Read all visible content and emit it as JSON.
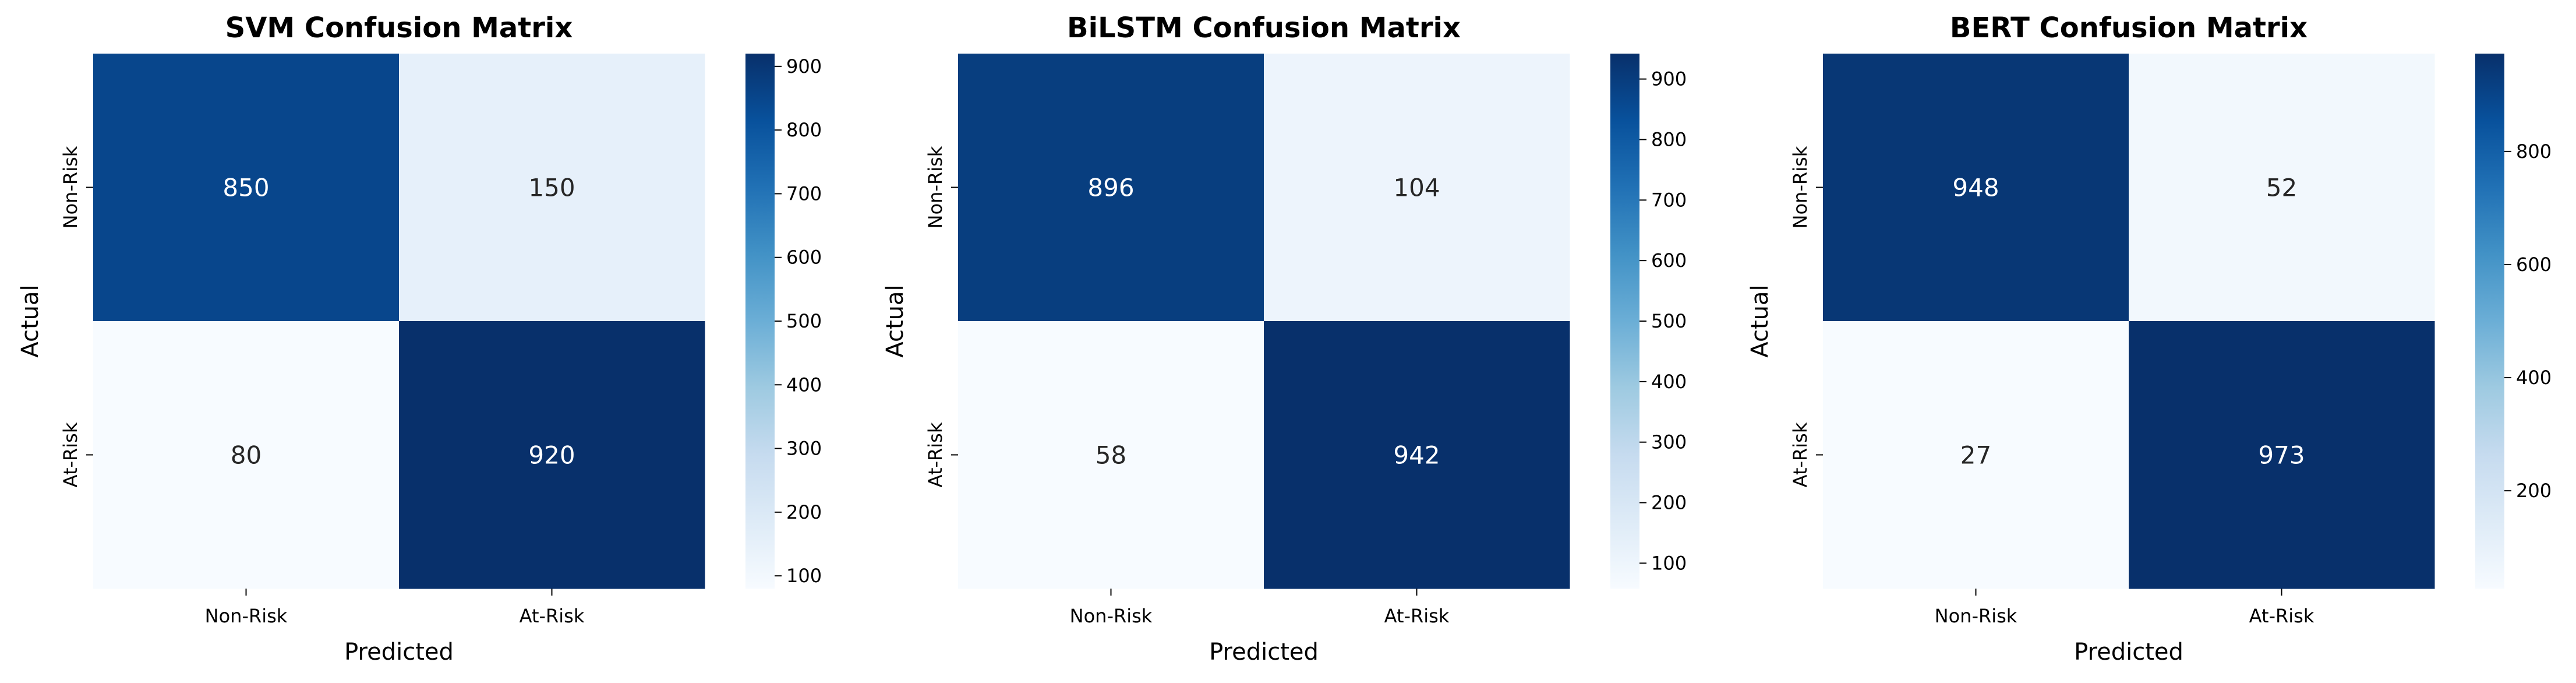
{
  "chart_data": [
    {
      "type": "heatmap",
      "title": "SVM Confusion Matrix",
      "xlabel": "Predicted",
      "ylabel": "Actual",
      "x_categories": [
        "Non-Risk",
        "At-Risk"
      ],
      "y_categories": [
        "Non-Risk",
        "At-Risk"
      ],
      "values": [
        [
          850,
          150
        ],
        [
          80,
          920
        ]
      ],
      "colormap": "Blues",
      "colorbar_range": [
        80,
        920
      ],
      "colorbar_ticks": [
        100,
        200,
        300,
        400,
        500,
        600,
        700,
        800,
        900
      ]
    },
    {
      "type": "heatmap",
      "title": "BiLSTM Confusion Matrix",
      "xlabel": "Predicted",
      "ylabel": "Actual",
      "x_categories": [
        "Non-Risk",
        "At-Risk"
      ],
      "y_categories": [
        "Non-Risk",
        "At-Risk"
      ],
      "values": [
        [
          896,
          104
        ],
        [
          58,
          942
        ]
      ],
      "colormap": "Blues",
      "colorbar_range": [
        58,
        942
      ],
      "colorbar_ticks": [
        100,
        200,
        300,
        400,
        500,
        600,
        700,
        800,
        900
      ]
    },
    {
      "type": "heatmap",
      "title": "BERT Confusion Matrix",
      "xlabel": "Predicted",
      "ylabel": "Actual",
      "x_categories": [
        "Non-Risk",
        "At-Risk"
      ],
      "y_categories": [
        "Non-Risk",
        "At-Risk"
      ],
      "values": [
        [
          948,
          52
        ],
        [
          27,
          973
        ]
      ],
      "colormap": "Blues",
      "colorbar_range": [
        27,
        973
      ],
      "colorbar_ticks": [
        200,
        400,
        600,
        800
      ]
    }
  ]
}
